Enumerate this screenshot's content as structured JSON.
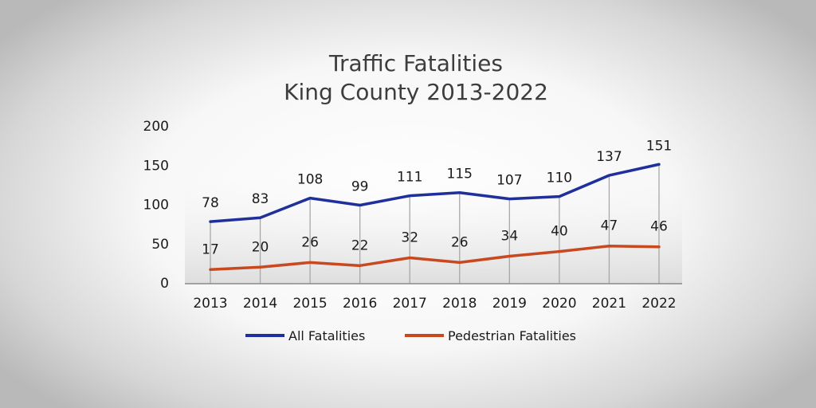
{
  "chart_data": {
    "type": "line",
    "title": [
      "Traffic Fatalities",
      "King County 2013-2022"
    ],
    "categories": [
      "2013",
      "2014",
      "2015",
      "2016",
      "2017",
      "2018",
      "2019",
      "2020",
      "2021",
      "2022"
    ],
    "series": [
      {
        "name": "All Fatalities",
        "color": "#1f2f9b",
        "values": [
          78,
          83,
          108,
          99,
          111,
          115,
          107,
          110,
          137,
          151
        ]
      },
      {
        "name": "Pedestrian Fatalities",
        "color": "#c8481f",
        "values": [
          17,
          20,
          26,
          22,
          32,
          26,
          34,
          40,
          47,
          46
        ]
      }
    ],
    "y_ticks": [
      "200",
      "150",
      "100",
      "50",
      "0"
    ],
    "ylim": [
      0,
      200
    ],
    "xlabel": "",
    "ylabel": "",
    "grid": "vertical-drop-lines",
    "legend": "bottom-center",
    "data_labels": true
  }
}
